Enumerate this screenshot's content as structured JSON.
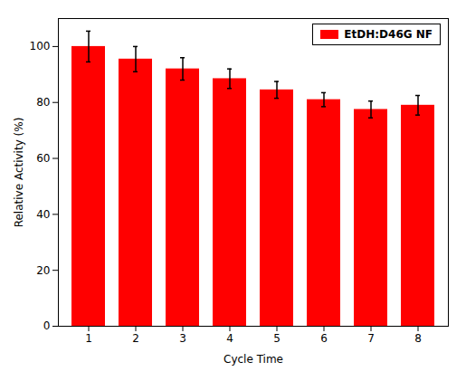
{
  "chart_data": {
    "type": "bar",
    "categories": [
      1,
      2,
      3,
      4,
      5,
      6,
      7,
      8
    ],
    "values": [
      100.0,
      95.5,
      92.0,
      88.5,
      84.5,
      81.0,
      77.5,
      79.0
    ],
    "errors": [
      5.5,
      4.5,
      4.0,
      3.5,
      3.0,
      2.5,
      3.0,
      3.5
    ],
    "color": "#ff0000",
    "xlabel": "Cycle Time",
    "ylabel": "Relative Activity (%)",
    "ylim": [
      0,
      110
    ],
    "yticks": [
      0,
      20,
      40,
      60,
      80,
      100
    ],
    "series": [
      {
        "name": "EtDH:D46G NF",
        "color": "#ff0000"
      }
    ],
    "legend": "upper right",
    "grid": false
  }
}
